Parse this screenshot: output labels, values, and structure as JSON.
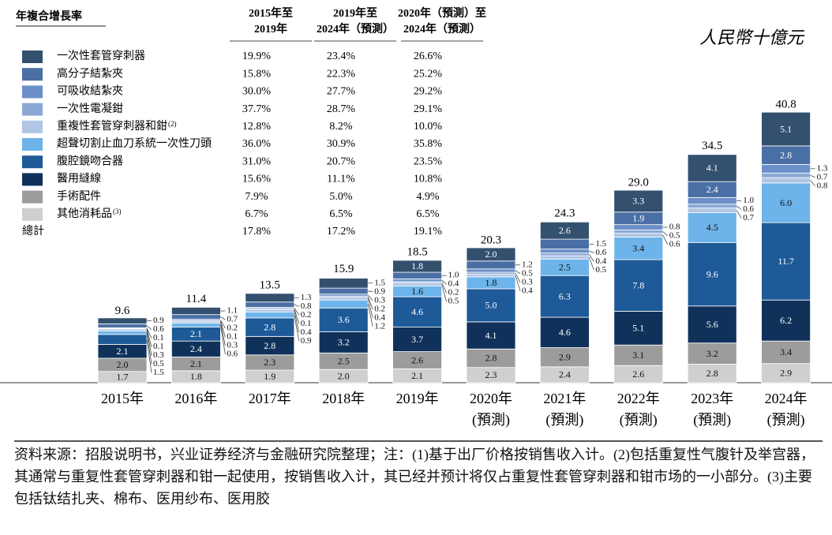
{
  "chart_data": {
    "type": "stacked_bar",
    "unit": "人民幣十億元",
    "legend_title": "年複合增長率",
    "cagr_headers": [
      [
        "2015年至",
        "2019年"
      ],
      [
        "2019年至",
        "2024年（預測）"
      ],
      [
        "2020年（預測）至",
        "2024年（預測）"
      ]
    ],
    "categories": [
      "2015年",
      "2016年",
      "2017年",
      "2018年",
      "2019年",
      "2020年",
      "2021年",
      "2022年",
      "2023年",
      "2024年"
    ],
    "category_notes": [
      null,
      null,
      null,
      null,
      null,
      "(預測)",
      "(預測)",
      "(預測)",
      "(預測)",
      "(預測)"
    ],
    "series": [
      {
        "name": "一次性套管穿刺器",
        "color": "#34506f",
        "values": [
          0.9,
          1.1,
          1.3,
          1.5,
          1.8,
          2.0,
          2.6,
          3.3,
          4.1,
          5.1
        ],
        "value_labels": [
          "0.9",
          "1.1",
          "1.3",
          "1.5",
          "1.8",
          "2.0",
          "2.6",
          "3.3",
          "4.1",
          "5.1"
        ],
        "cagr": [
          19.9,
          23.4,
          26.6
        ],
        "cagr_labels": [
          "19.9%",
          "23.4%",
          "26.6%"
        ]
      },
      {
        "name": "高分子結紮夾",
        "color": "#4a6fa5",
        "values": [
          0.6,
          0.7,
          0.8,
          0.9,
          1.0,
          1.2,
          1.5,
          1.9,
          2.4,
          2.8
        ],
        "value_labels": [
          "0.6",
          "0.7",
          "0.8",
          "0.9",
          "1.0",
          "1.2",
          "1.5",
          "1.9",
          "2.4",
          "2.8"
        ],
        "cagr": [
          15.8,
          22.3,
          25.2
        ],
        "cagr_labels": [
          "15.8%",
          "22.3%",
          "25.2%"
        ]
      },
      {
        "name": "可吸收結紮夾",
        "color": "#6b8fc9",
        "values": [
          0.1,
          0.2,
          0.2,
          0.3,
          0.4,
          0.5,
          0.6,
          0.8,
          1.0,
          1.3
        ],
        "value_labels": [
          "0.1",
          "0.2",
          "0.2",
          "0.3",
          "0.4",
          "0.5",
          "0.6",
          "0.8",
          "1.0",
          "1.3"
        ],
        "cagr": [
          30.0,
          27.7,
          29.2
        ],
        "cagr_labels": [
          "30.0%",
          "27.7%",
          "29.2%"
        ]
      },
      {
        "name": "一次性電凝鉗",
        "color": "#8ba8d4",
        "values": [
          0.1,
          0.1,
          0.1,
          0.2,
          0.2,
          0.3,
          0.4,
          0.5,
          0.6,
          0.7
        ],
        "value_labels": [
          "0.1",
          "0.1",
          "0.1",
          "0.2",
          "0.2",
          "0.3",
          "0.4",
          "0.5",
          "0.6",
          "0.7"
        ],
        "cagr": [
          37.7,
          28.7,
          29.1
        ],
        "cagr_labels": [
          "37.7%",
          "28.7%",
          "29.1%"
        ]
      },
      {
        "name": "重複性套管穿刺器和鉗",
        "name_note": "(2)",
        "color": "#b0c6e4",
        "values": [
          0.3,
          0.3,
          0.4,
          0.4,
          0.5,
          0.4,
          0.5,
          0.6,
          0.7,
          0.8
        ],
        "value_labels": [
          "0.3",
          "0.3",
          "0.4",
          "0.4",
          "0.5",
          "0.4",
          "0.5",
          "0.6",
          "0.7",
          "0.8"
        ],
        "cagr": [
          12.8,
          8.2,
          10.0
        ],
        "cagr_labels": [
          "12.8%",
          "8.2%",
          "10.0%"
        ]
      },
      {
        "name": "超聲切割止血刀系統一次性刀頭",
        "color": "#6db4ea",
        "values": [
          0.5,
          0.6,
          0.9,
          1.2,
          1.6,
          1.8,
          2.5,
          3.4,
          4.5,
          6.0
        ],
        "value_labels": [
          "0.5",
          "0.6",
          "0.9",
          "1.2",
          "1.6",
          "1.8",
          "2.5",
          "3.4",
          "4.5",
          "6.0"
        ],
        "cagr": [
          36.0,
          30.9,
          35.8
        ],
        "cagr_labels": [
          "36.0%",
          "30.9%",
          "35.8%"
        ]
      },
      {
        "name": "腹腔鏡吻合器",
        "color": "#1e5a98",
        "values": [
          1.5,
          2.1,
          2.8,
          3.6,
          4.6,
          5.0,
          6.3,
          7.8,
          9.6,
          11.7
        ],
        "value_labels": [
          "1.5",
          "2.1",
          "2.8",
          "3.6",
          "4.6",
          "5.0",
          "6.3",
          "7.8",
          "9.6",
          "11.7"
        ],
        "cagr": [
          31.0,
          20.7,
          23.5
        ],
        "cagr_labels": [
          "31.0%",
          "20.7%",
          "23.5%"
        ]
      },
      {
        "name": "醫用縫線",
        "color": "#10325a",
        "values": [
          2.1,
          2.4,
          2.8,
          3.2,
          3.7,
          4.1,
          4.6,
          5.1,
          5.6,
          6.2
        ],
        "value_labels": [
          "2.1",
          "2.4",
          "2.8",
          "3.2",
          "3.7",
          "4.1",
          "4.6",
          "5.1",
          "5.6",
          "6.2"
        ],
        "cagr": [
          15.6,
          11.1,
          10.8
        ],
        "cagr_labels": [
          "15.6%",
          "11.1%",
          "10.8%"
        ]
      },
      {
        "name": "手術配件",
        "color": "#9c9c9c",
        "values": [
          2.0,
          2.1,
          2.3,
          2.5,
          2.6,
          2.8,
          2.9,
          3.1,
          3.2,
          3.4
        ],
        "value_labels": [
          "2.0",
          "2.1",
          "2.3",
          "2.5",
          "2.6",
          "2.8",
          "2.9",
          "3.1",
          "3.2",
          "3.4"
        ],
        "cagr": [
          7.9,
          5.0,
          4.9
        ],
        "cagr_labels": [
          "7.9%",
          "5.0%",
          "4.9%"
        ]
      },
      {
        "name": "其他消耗品",
        "name_note": "(3)",
        "color": "#cfcfcf",
        "values": [
          1.7,
          1.8,
          1.9,
          2.0,
          2.1,
          2.3,
          2.4,
          2.6,
          2.8,
          2.9
        ],
        "value_labels": [
          "1.7",
          "1.8",
          "1.9",
          "2.0",
          "2.1",
          "2.3",
          "2.4",
          "2.6",
          "2.8",
          "2.9"
        ],
        "cagr": [
          6.7,
          6.5,
          6.5
        ],
        "cagr_labels": [
          "6.7%",
          "6.5%",
          "6.5%"
        ]
      }
    ],
    "total_row": {
      "name": "總計",
      "cagr": [
        17.8,
        17.2,
        19.1
      ],
      "cagr_labels": [
        "17.8%",
        "17.2%",
        "19.1%"
      ]
    },
    "totals": {
      "values": [
        9.6,
        11.4,
        13.5,
        15.9,
        18.5,
        20.3,
        24.3,
        29.0,
        34.5,
        40.8
      ],
      "value_labels": [
        "9.6",
        "11.4",
        "13.5",
        "15.9",
        "18.5",
        "20.3",
        "24.3",
        "29.0",
        "34.5",
        "40.8"
      ]
    },
    "footnote": "资料来源：招股说明书，兴业证券经济与金融研究院整理；注：(1)基于出厂价格按销售收入计。(2)包括重复性气腹针及举宫器，其通常与重复性套管穿刺器和钳一起使用，按销售收入计，其已经并预计将仅占重复性套管穿刺器和钳市场的一小部分。(3)主要包括钛结扎夹、棉布、医用纱布、医用胶"
  }
}
